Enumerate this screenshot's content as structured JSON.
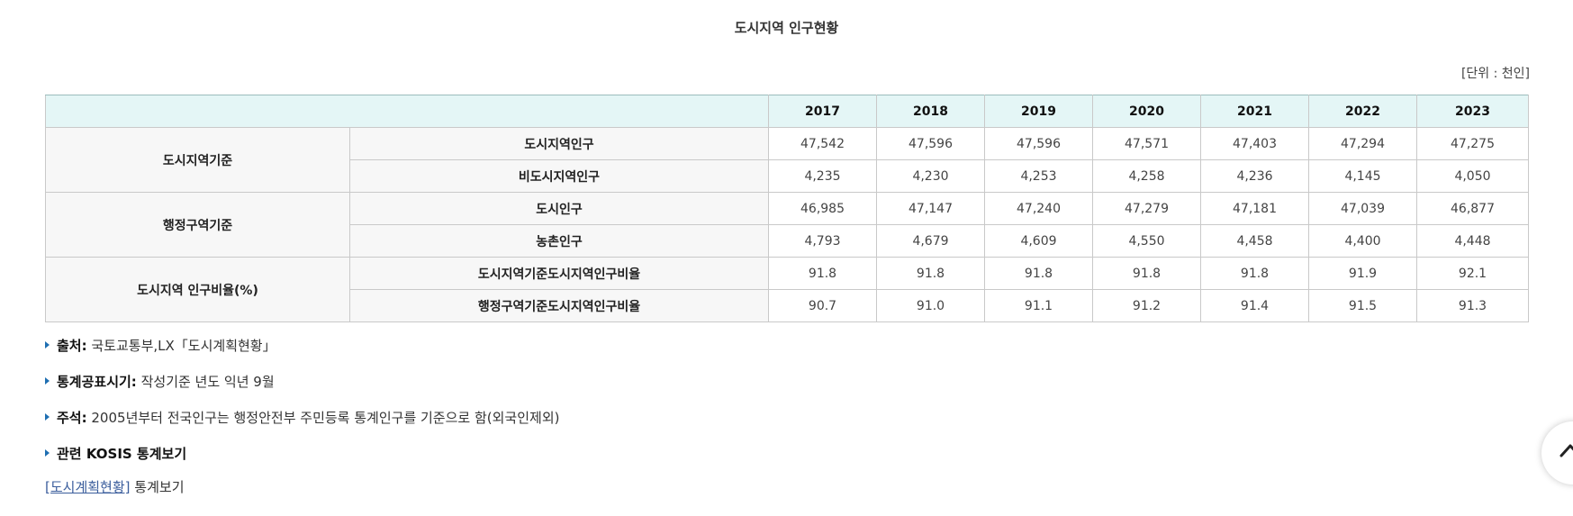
{
  "title": "도시지역 인구현황",
  "unit": "[단위 : 천인]",
  "table": {
    "years": [
      "2017",
      "2018",
      "2019",
      "2020",
      "2021",
      "2022",
      "2023"
    ],
    "groups": [
      {
        "label": "도시지역기준",
        "rows": [
          {
            "label": "도시지역인구",
            "values": [
              "47,542",
              "47,596",
              "47,596",
              "47,571",
              "47,403",
              "47,294",
              "47,275"
            ]
          },
          {
            "label": "비도시지역인구",
            "values": [
              "4,235",
              "4,230",
              "4,253",
              "4,258",
              "4,236",
              "4,145",
              "4,050"
            ]
          }
        ]
      },
      {
        "label": "행정구역기준",
        "rows": [
          {
            "label": "도시인구",
            "values": [
              "46,985",
              "47,147",
              "47,240",
              "47,279",
              "47,181",
              "47,039",
              "46,877"
            ]
          },
          {
            "label": "농촌인구",
            "values": [
              "4,793",
              "4,679",
              "4,609",
              "4,550",
              "4,458",
              "4,400",
              "4,448"
            ]
          }
        ]
      },
      {
        "label": "도시지역 인구비율(%)",
        "rows": [
          {
            "label": "도시지역기준도시지역인구비율",
            "values": [
              "91.8",
              "91.8",
              "91.8",
              "91.8",
              "91.8",
              "91.9",
              "92.1"
            ]
          },
          {
            "label": "행정구역기준도시지역인구비율",
            "values": [
              "90.7",
              "91.0",
              "91.1",
              "91.2",
              "91.4",
              "91.5",
              "91.3"
            ]
          }
        ]
      }
    ]
  },
  "notes": {
    "source_label": "출처:",
    "source_text": "국토교통부,LX「도시계획현황」",
    "release_label": "통계공표시기:",
    "release_text": "작성기준 년도 익년 9월",
    "remark_label": "주석:",
    "remark_text": "2005년부터 전국인구는 행정안전부 주민등록 통계인구를 기준으로 함(외국인제외)",
    "kosis_heading": "관련 KOSIS 통계보기"
  },
  "related": {
    "link_text": "[도시계획현황]",
    "suffix": "통계보기"
  },
  "colors": {
    "header_bg": "#e4f6f6",
    "row_header_bg": "#f7f7f7",
    "bullet": "#1f6fb2",
    "link": "#3a5d9c"
  },
  "icons": {
    "bullet": "triangle-right-icon",
    "scroll_top": "chevron-up-icon"
  }
}
